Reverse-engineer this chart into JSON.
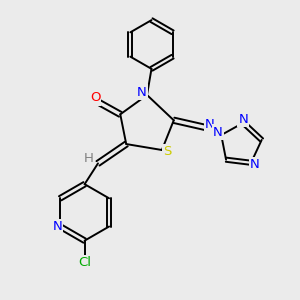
{
  "background_color": "#ebebeb",
  "atom_colors": {
    "C": "#000000",
    "N": "#0000ff",
    "O": "#ff0000",
    "S": "#cccc00",
    "Cl": "#00aa00",
    "H": "#808080"
  },
  "bond_color": "#000000",
  "figsize": [
    3.0,
    3.0
  ],
  "dpi": 100
}
